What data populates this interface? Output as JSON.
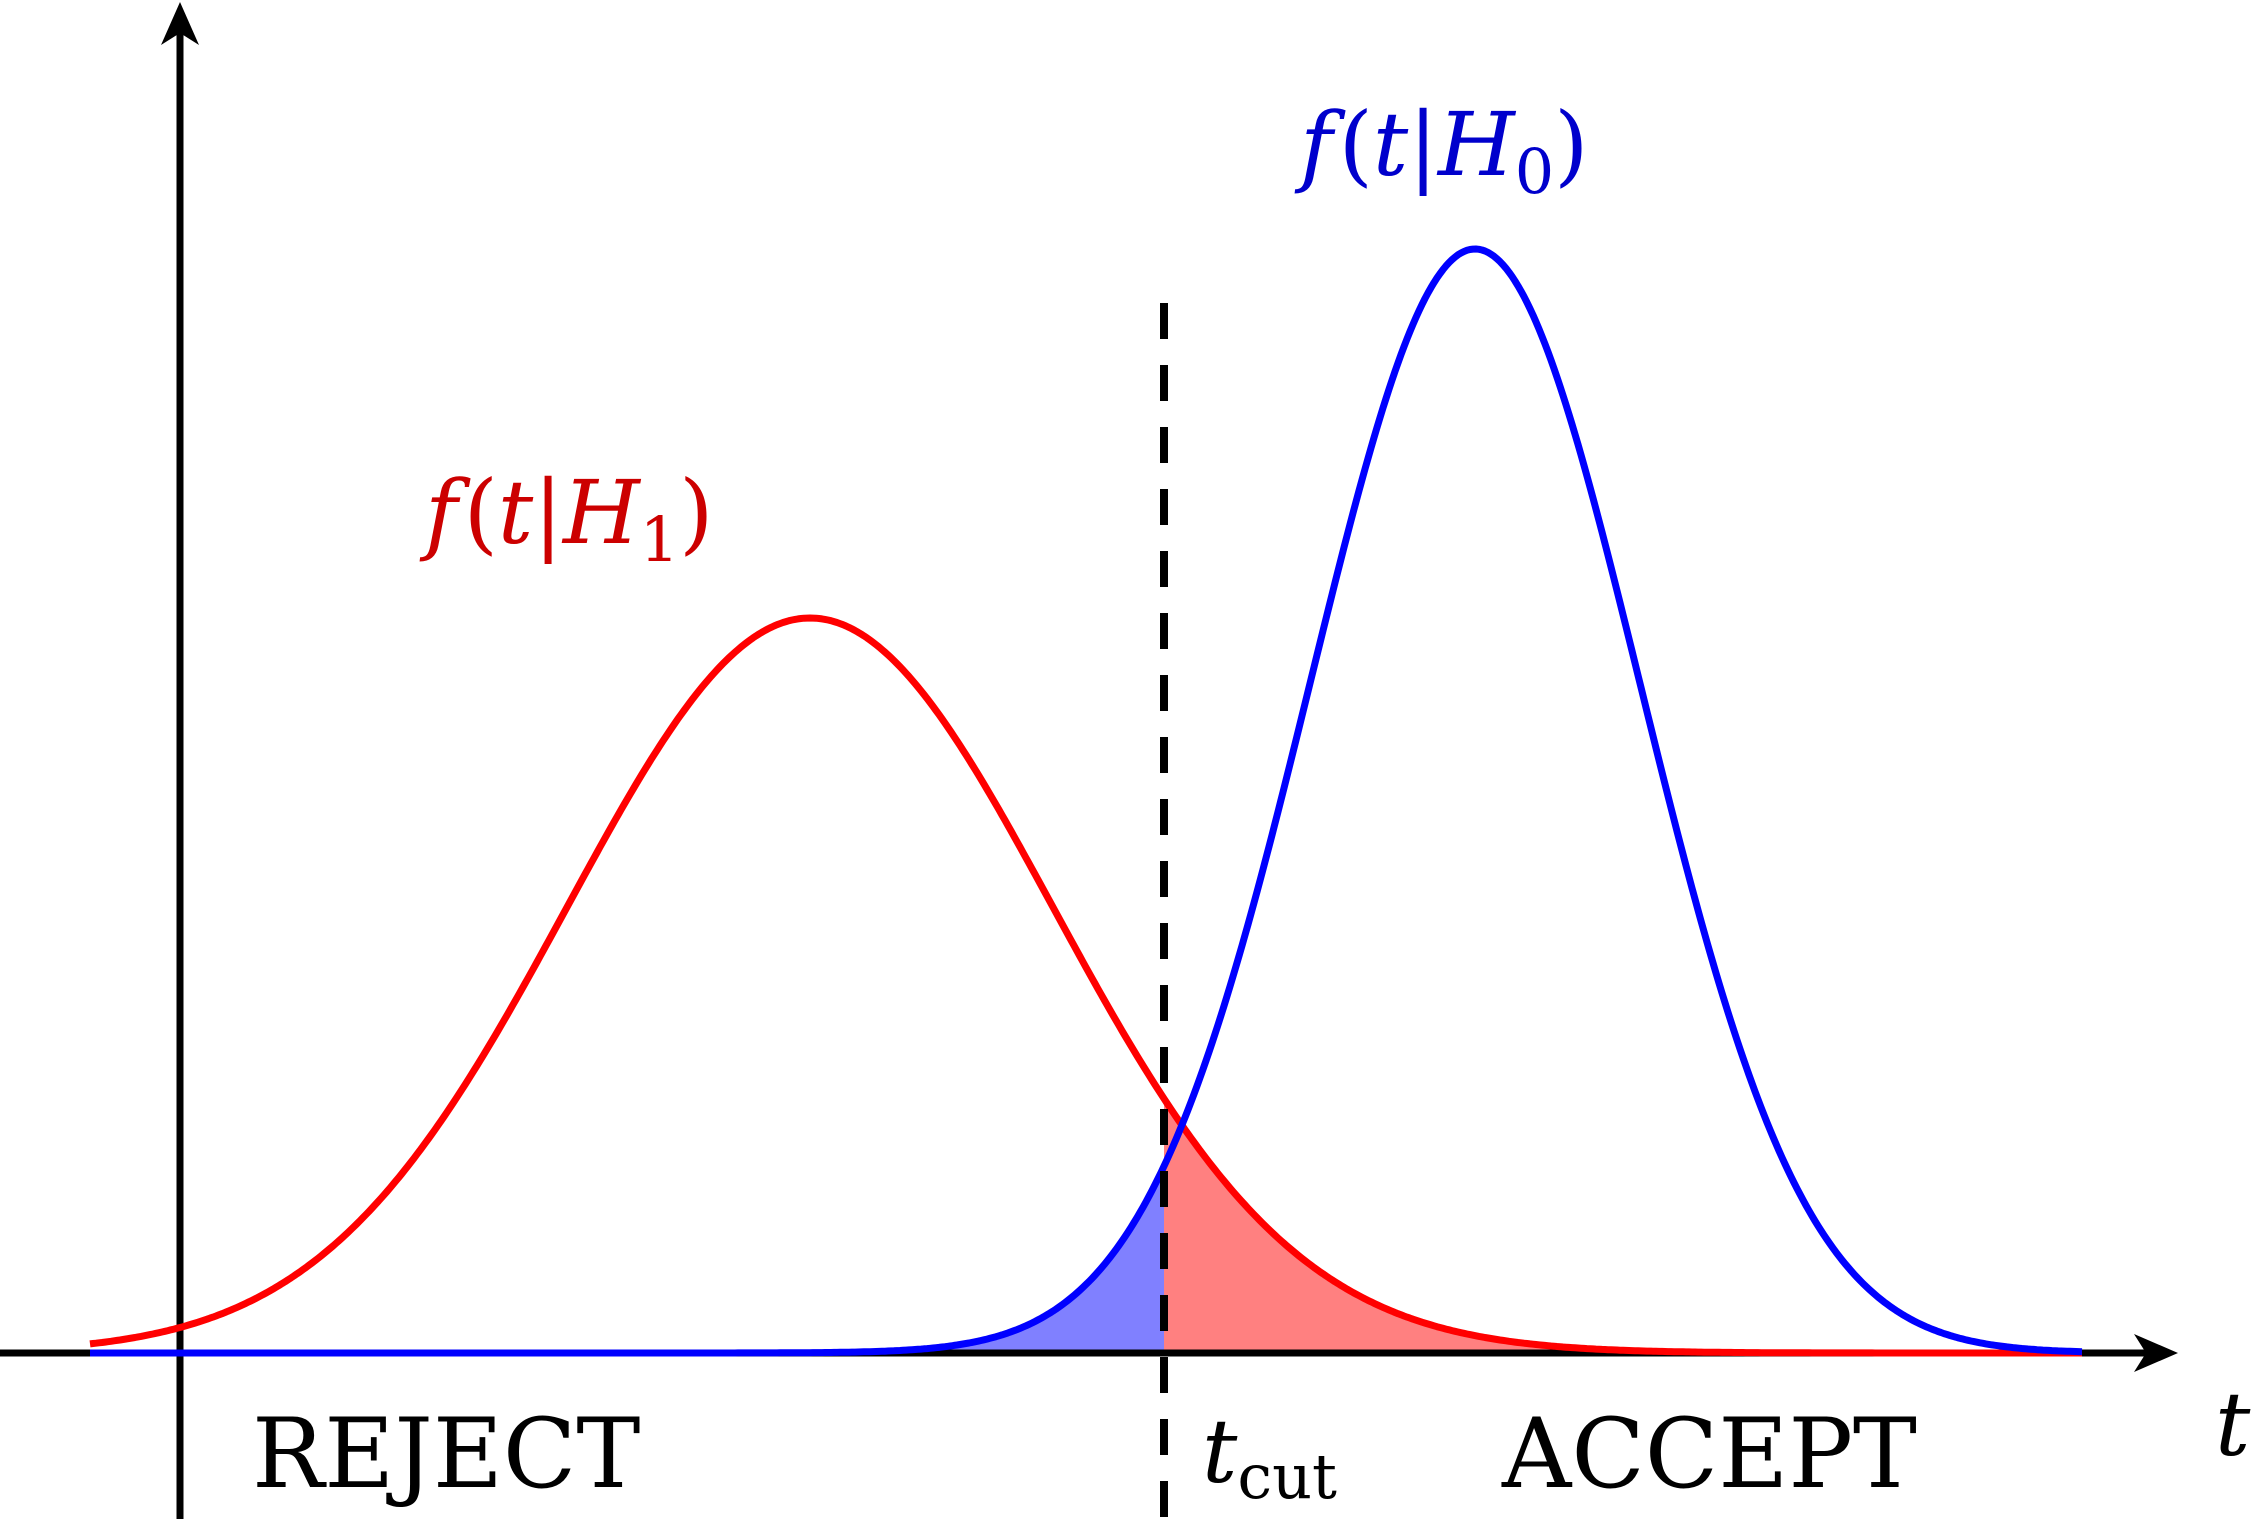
{
  "labels": {
    "h0_f": "f",
    "h0_open": "(",
    "h0_t": "t",
    "h0_bar": "|",
    "h0_H": "H",
    "h0_sub": "0",
    "h0_close": ")",
    "h1_f": "f",
    "h1_open": "(",
    "h1_t": "t",
    "h1_bar": "|",
    "h1_H": "H",
    "h1_sub": "1",
    "h1_close": ")",
    "axis_t": "t",
    "tcut_t": "t",
    "tcut_sub": "cut",
    "reject": "REJECT",
    "accept": "ACCEPT"
  },
  "colors": {
    "h0": "#0000ff",
    "h1": "#ff0000",
    "h0_fill": "#8080ff",
    "h1_fill": "#ff8080",
    "h0_label": "#0000cc",
    "h1_label": "#cc0000",
    "axis": "#000000"
  },
  "icons": {
    "x_axis_arrow": "arrow-right-icon",
    "y_axis_arrow": "arrow-up-icon"
  }
}
